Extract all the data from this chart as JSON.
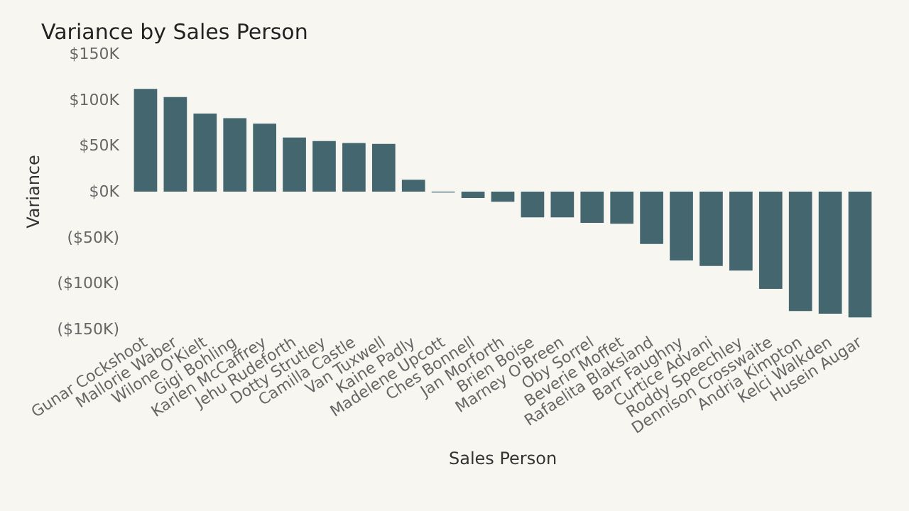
{
  "chart_data": {
    "type": "bar",
    "title": "Variance by Sales Person",
    "xlabel": "Sales Person",
    "ylabel": "Variance",
    "categories": [
      "Gunar Cockshoot",
      "Mallorie Waber",
      "Wilone O'Kielt",
      "Gigi Bohling",
      "Karlen McCaffrey",
      "Jehu Rudeforth",
      "Dotty Strutley",
      "Camilla Castle",
      "Van Tuxwell",
      "Kaine Padly",
      "Madelene Upcott",
      "Ches Bonnell",
      "Jan Morforth",
      "Brien Boise",
      "Marney O'Breen",
      "Oby Sorrel",
      "Beverie Moffet",
      "Rafaelita Blaksland",
      "Barr Faughny",
      "Curtice Advani",
      "Roddy Speechley",
      "Dennison Crosswaite",
      "Andria Kimpton",
      "Kelci Walkden",
      "Husein Augar"
    ],
    "values": [
      112000,
      103000,
      85000,
      80000,
      74000,
      59000,
      55000,
      53000,
      52000,
      13000,
      -1000,
      -7000,
      -11000,
      -28000,
      -28000,
      -34000,
      -35000,
      -57000,
      -75000,
      -81000,
      -86000,
      -106000,
      -130000,
      -133000,
      -137000
    ],
    "color": "#43666f",
    "ylim": [
      -150000,
      150000
    ],
    "yticks": [
      {
        "value": -150000,
        "label": "($150K)"
      },
      {
        "value": -100000,
        "label": "($100K)"
      },
      {
        "value": -50000,
        "label": "($50K)"
      },
      {
        "value": 0,
        "label": "$0K"
      },
      {
        "value": 50000,
        "label": "$50K"
      },
      {
        "value": 100000,
        "label": "$100K"
      },
      {
        "value": 150000,
        "label": "$150K"
      }
    ],
    "grid": false
  }
}
